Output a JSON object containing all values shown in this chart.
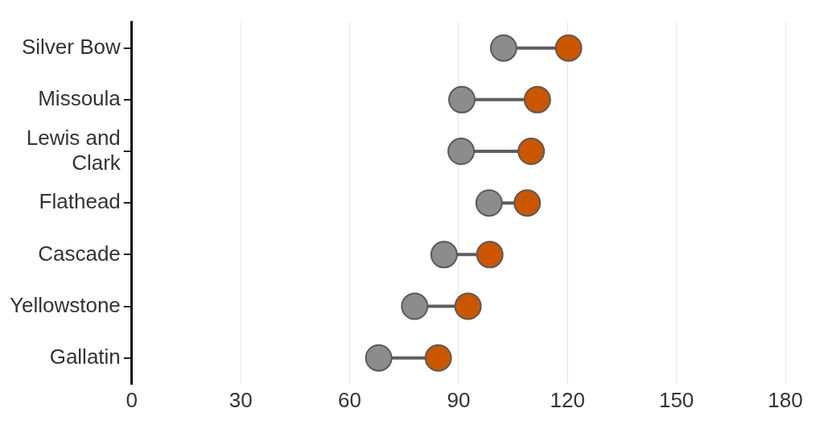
{
  "chart_data": {
    "type": "scatter",
    "orientation": "horizontal",
    "categories": [
      "Silver Bow",
      "Missoula",
      "Lewis and Clark",
      "Flathead",
      "Cascade",
      "Yellowstone",
      "Gallatin"
    ],
    "series": [
      {
        "color": "#8c8c8c",
        "values": [
          102.4,
          90.9,
          90.7,
          98.4,
          86,
          77.9,
          68
        ]
      },
      {
        "color": "#cc5500",
        "values": [
          120.3,
          111.7,
          110,
          108.9,
          98.6,
          92.6,
          84.4
        ]
      }
    ],
    "xlim": [
      0,
      180
    ],
    "xticks": [
      0,
      30,
      60,
      90,
      120,
      150,
      180
    ],
    "grid": "x",
    "legend": false,
    "marker": "circle"
  }
}
